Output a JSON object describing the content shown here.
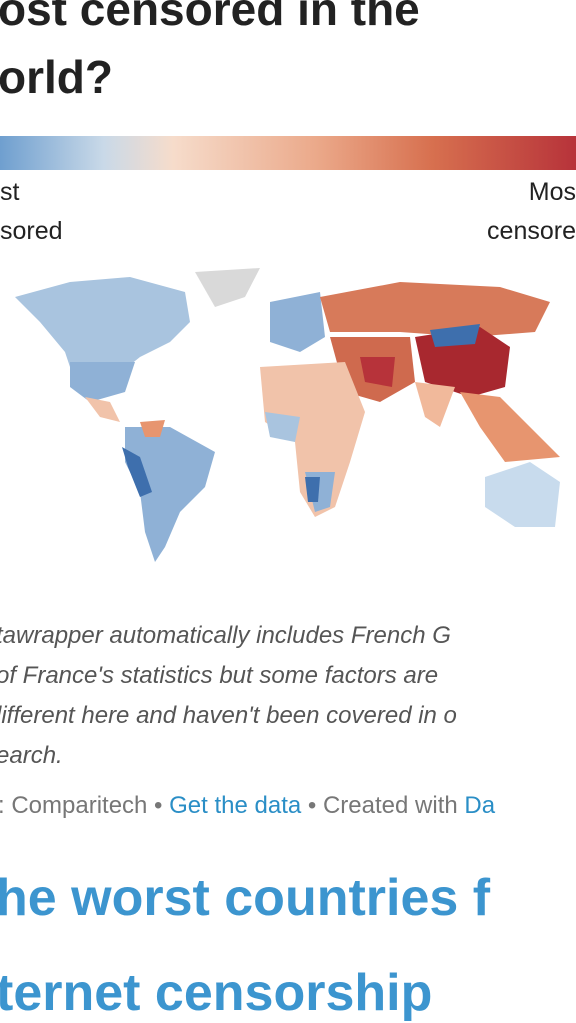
{
  "title": {
    "lines": [
      "ost censored in the",
      "orld?"
    ]
  },
  "legend": {
    "low": [
      "st",
      "sored"
    ],
    "high": [
      "Mos",
      "censore"
    ]
  },
  "notes": {
    "lines": [
      "tawrapper automatically includes French G",
      " of France's statistics but some factors are",
      "lifferent here and haven't been covered in o",
      "earch."
    ]
  },
  "source": {
    "parts": [
      ": Comparitech •",
      "Get the data",
      "• Created with",
      "Da"
    ]
  },
  "heading": {
    "lines": [
      "he worst countries f",
      "ternet censorship"
    ]
  }
}
